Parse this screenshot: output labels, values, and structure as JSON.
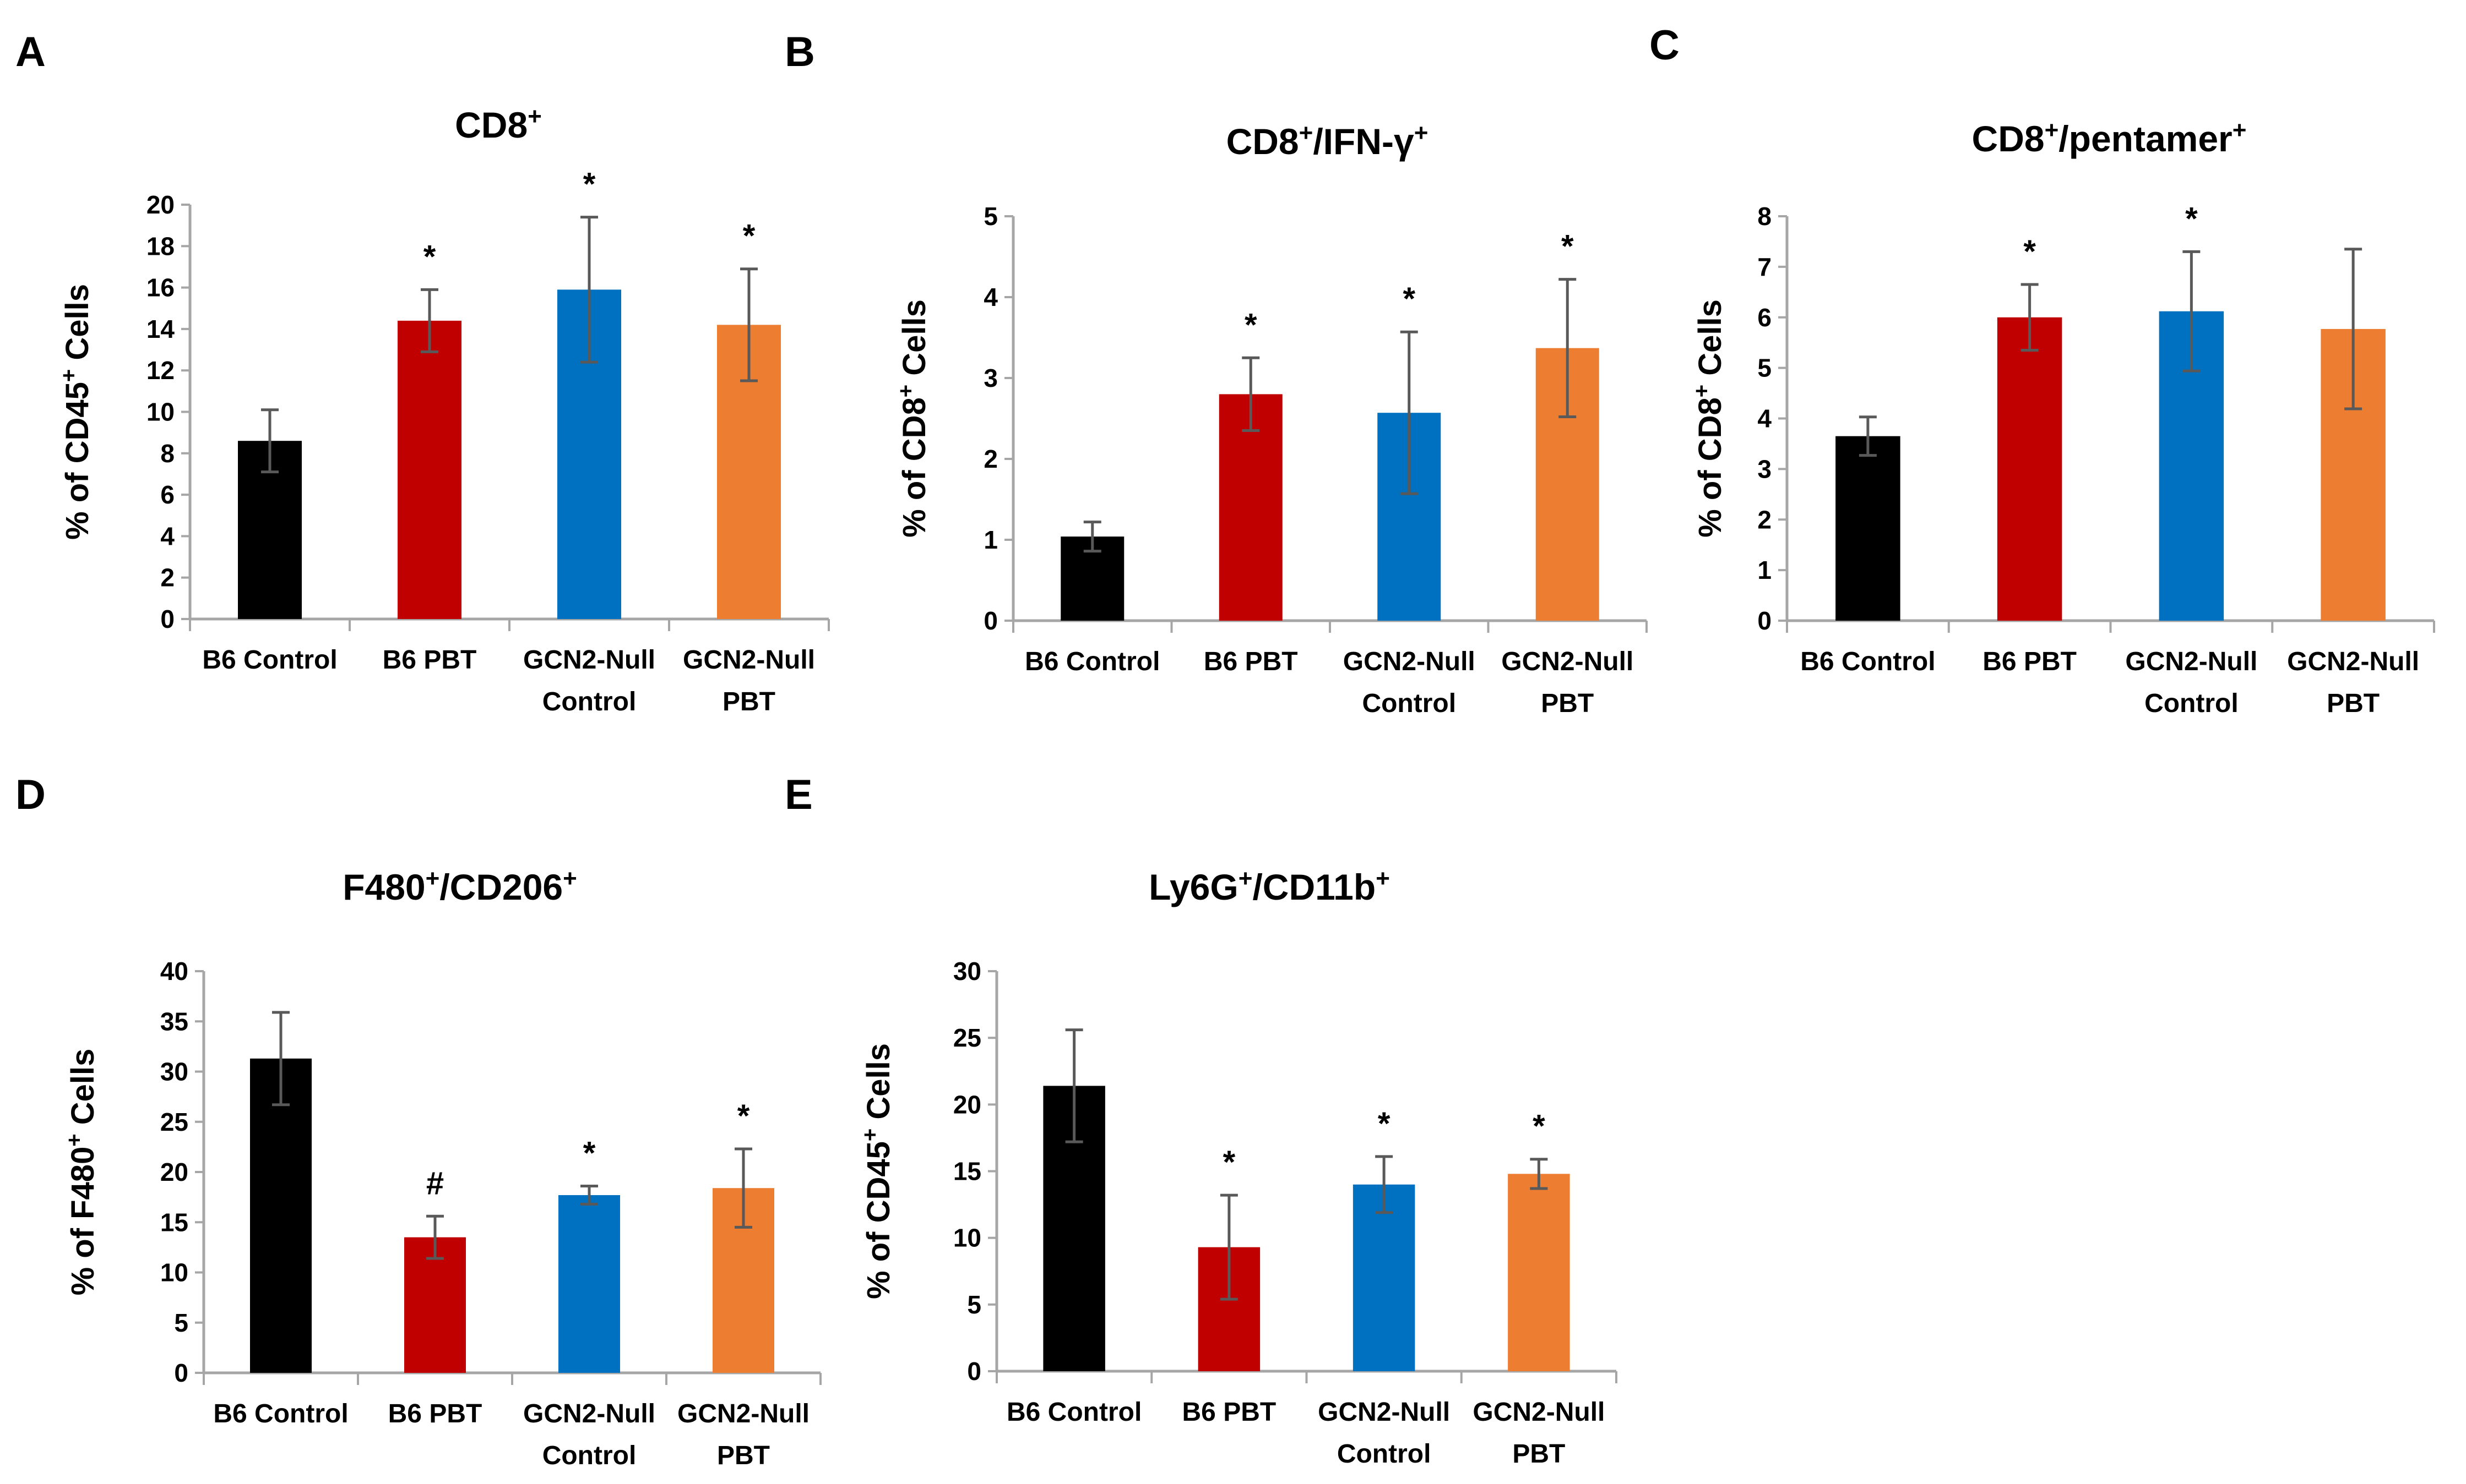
{
  "figure": {
    "colors": {
      "b6_control": "#000000",
      "b6_pbt": "#c00000",
      "gcn2_null_control": "#0070c0",
      "gcn2_null_pbt": "#ed7d31",
      "error_bar": "#595959",
      "axis": "#a6a6a6"
    }
  },
  "chart_data": [
    {
      "panel": "A",
      "type": "bar",
      "title": "CD8",
      "title_sup": "+",
      "ylabel": "% of CD45",
      "ylabel_sup": "+",
      "ylabel_suffix": " Cells",
      "ylim": [
        0,
        20
      ],
      "yticks": [
        0,
        2,
        4,
        6,
        8,
        10,
        12,
        14,
        16,
        18,
        20
      ],
      "categories": [
        [
          "B6 Control"
        ],
        [
          "B6 PBT"
        ],
        [
          "GCN2-Null",
          "Control"
        ],
        [
          "GCN2-Null",
          "PBT"
        ]
      ],
      "values": [
        8.6,
        14.4,
        15.9,
        14.2
      ],
      "errors": [
        1.5,
        1.5,
        3.5,
        2.7
      ],
      "markers": [
        "",
        "*",
        "*",
        "*"
      ],
      "grid": false
    },
    {
      "panel": "B",
      "type": "bar",
      "title": "CD8",
      "title_sup": "+",
      "title_mid": "/IFN-γ",
      "title_sup2": "+",
      "ylabel": "% of CD8",
      "ylabel_sup": "+",
      "ylabel_suffix": " Cells",
      "ylim": [
        0,
        5
      ],
      "yticks": [
        0,
        1,
        2,
        3,
        4,
        5
      ],
      "categories": [
        [
          "B6 Control"
        ],
        [
          "B6 PBT"
        ],
        [
          "GCN2-Null",
          "Control"
        ],
        [
          "GCN2-Null",
          "PBT"
        ]
      ],
      "values": [
        1.04,
        2.8,
        2.57,
        3.37
      ],
      "errors": [
        0.18,
        0.45,
        1.0,
        0.85
      ],
      "markers": [
        "",
        "*",
        "*",
        "*"
      ],
      "grid": false
    },
    {
      "panel": "C",
      "type": "bar",
      "title": "CD8",
      "title_sup": "+",
      "title_mid": "/pentamer",
      "title_sup2": "+",
      "ylabel": "% of CD8",
      "ylabel_sup": "+",
      "ylabel_suffix": " Cells",
      "ylim": [
        0,
        8
      ],
      "yticks": [
        0,
        1,
        2,
        3,
        4,
        5,
        6,
        7,
        8
      ],
      "categories": [
        [
          "B6 Control"
        ],
        [
          "B6 PBT"
        ],
        [
          "GCN2-Null",
          "Control"
        ],
        [
          "GCN2-Null",
          "PBT"
        ]
      ],
      "values": [
        3.65,
        6.0,
        6.12,
        5.77
      ],
      "errors": [
        0.38,
        0.65,
        1.18,
        1.58
      ],
      "markers": [
        "",
        "*",
        "*",
        ""
      ],
      "grid": false
    },
    {
      "panel": "D",
      "type": "bar",
      "title": "F480",
      "title_sup": "+",
      "title_mid": "/CD206",
      "title_sup2": "+",
      "ylabel": "% of F480",
      "ylabel_sup": "+",
      "ylabel_suffix": " Cells",
      "ylim": [
        0,
        40
      ],
      "yticks": [
        0,
        5,
        10,
        15,
        20,
        25,
        30,
        35,
        40
      ],
      "categories": [
        [
          "B6 Control"
        ],
        [
          "B6 PBT"
        ],
        [
          "GCN2-Null",
          "Control"
        ],
        [
          "GCN2-Null",
          "PBT"
        ]
      ],
      "values": [
        31.3,
        13.5,
        17.7,
        18.4
      ],
      "errors": [
        4.6,
        2.1,
        0.9,
        3.9
      ],
      "markers": [
        "",
        "#",
        "*",
        "*"
      ],
      "grid": false
    },
    {
      "panel": "E",
      "type": "bar",
      "title": "Ly6G",
      "title_sup": "+",
      "title_mid": "/CD11b",
      "title_sup2": "+",
      "ylabel": "% of CD45",
      "ylabel_sup": "+",
      "ylabel_suffix": " Cells",
      "ylim": [
        0,
        30
      ],
      "yticks": [
        0,
        5,
        10,
        15,
        20,
        25,
        30
      ],
      "categories": [
        [
          "B6 Control"
        ],
        [
          "B6 PBT"
        ],
        [
          "GCN2-Null",
          "Control"
        ],
        [
          "GCN2-Null",
          "PBT"
        ]
      ],
      "values": [
        21.4,
        9.3,
        14.0,
        14.8
      ],
      "errors": [
        4.2,
        3.9,
        2.1,
        1.1
      ],
      "markers": [
        "",
        "*",
        "*",
        "*"
      ],
      "grid": false
    }
  ]
}
